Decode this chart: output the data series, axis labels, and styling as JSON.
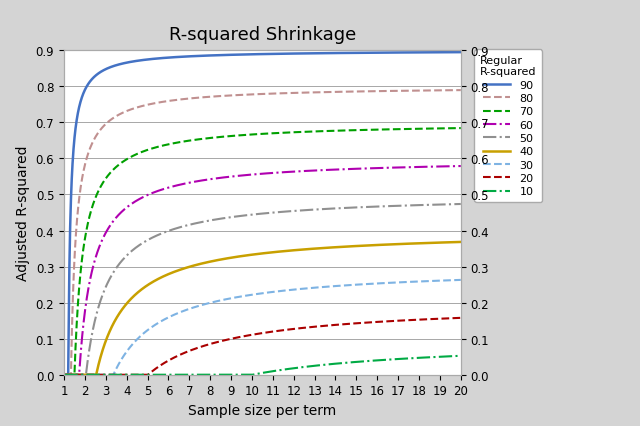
{
  "title": "R-squared Shrinkage",
  "xlabel": "Sample size per term",
  "ylabel": "Adjusted R-squared",
  "background_color": "#d4d4d4",
  "plot_bg_color": "#ffffff",
  "xmin": 1,
  "xmax": 20,
  "ymin": 0.0,
  "ymax": 0.9,
  "xticks": [
    1,
    2,
    3,
    4,
    5,
    6,
    7,
    8,
    9,
    10,
    11,
    12,
    13,
    14,
    15,
    16,
    17,
    18,
    19,
    20
  ],
  "yticks": [
    0.0,
    0.1,
    0.2,
    0.3,
    0.4,
    0.5,
    0.6,
    0.7,
    0.8,
    0.9
  ],
  "series": [
    {
      "label": "90",
      "r2": 0.9,
      "k": 10,
      "color": "#4472c4",
      "linestyle": "-",
      "linewidth": 1.8,
      "dashes": null
    },
    {
      "label": "80",
      "r2": 0.8,
      "k": 10,
      "color": "#c09090",
      "linestyle": "--",
      "linewidth": 1.5,
      "dashes": null
    },
    {
      "label": "70",
      "r2": 0.7,
      "k": 10,
      "color": "#00a000",
      "linestyle": "--",
      "linewidth": 1.5,
      "dashes": null
    },
    {
      "label": "60",
      "r2": 0.6,
      "k": 10,
      "color": "#b000b0",
      "linestyle": "-.",
      "linewidth": 1.5,
      "dashes": null
    },
    {
      "label": "50",
      "r2": 0.5,
      "k": 10,
      "color": "#909090",
      "linestyle": "-.",
      "linewidth": 1.5,
      "dashes": null
    },
    {
      "label": "40",
      "r2": 0.4,
      "k": 10,
      "color": "#c8a000",
      "linestyle": "-",
      "linewidth": 1.8,
      "dashes": null
    },
    {
      "label": "30",
      "r2": 0.3,
      "k": 10,
      "color": "#7eb3e3",
      "linestyle": "--",
      "linewidth": 1.5,
      "dashes": null
    },
    {
      "label": "20",
      "r2": 0.2,
      "k": 10,
      "color": "#aa0000",
      "linestyle": "--",
      "linewidth": 1.5,
      "dashes": null
    },
    {
      "label": "10",
      "r2": 0.1,
      "k": 10,
      "color": "#00aa44",
      "linestyle": "-.",
      "linewidth": 1.5,
      "dashes": null
    }
  ],
  "legend_title": "Regular\nR-squared",
  "title_fontsize": 13,
  "label_fontsize": 10,
  "tick_fontsize": 8.5
}
